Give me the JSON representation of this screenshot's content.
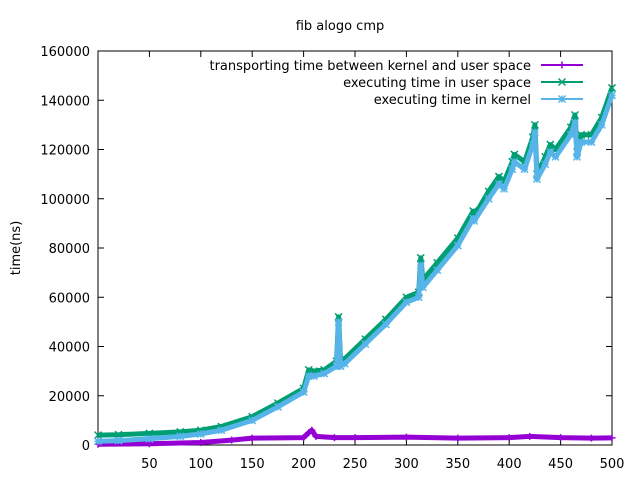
{
  "chart_data": {
    "type": "line",
    "title": "fib alogo cmp",
    "xlabel": "",
    "ylabel": "time(ns)",
    "xlim": [
      0,
      500
    ],
    "ylim": [
      0,
      160000
    ],
    "xticks": [
      50,
      100,
      150,
      200,
      250,
      300,
      350,
      400,
      450,
      500
    ],
    "yticks": [
      0,
      20000,
      40000,
      60000,
      80000,
      100000,
      120000,
      140000,
      160000
    ],
    "grid": false,
    "legend_position": "top-right",
    "series": [
      {
        "name": "transporting time between kernel and user space",
        "color": "#9400d3",
        "marker": "plus",
        "x": [
          0,
          50,
          100,
          130,
          150,
          200,
          205,
          208,
          212,
          230,
          250,
          300,
          350,
          400,
          420,
          450,
          480,
          500
        ],
        "values": [
          300,
          500,
          1000,
          2000,
          2800,
          3000,
          5000,
          6000,
          3500,
          3000,
          3000,
          3200,
          2800,
          3000,
          3500,
          3000,
          2800,
          2900
        ]
      },
      {
        "name": "executing time in user space",
        "color": "#009e73",
        "marker": "x",
        "x": [
          0,
          20,
          50,
          80,
          100,
          120,
          150,
          175,
          200,
          205,
          210,
          220,
          232,
          234,
          236,
          240,
          260,
          280,
          300,
          312,
          314,
          316,
          330,
          350,
          365,
          366,
          380,
          390,
          395,
          403,
          405,
          415,
          423,
          425,
          427,
          435,
          440,
          445,
          460,
          464,
          466,
          470,
          480,
          490,
          500
        ],
        "values": [
          4000,
          4200,
          4700,
          5300,
          6000,
          7500,
          11500,
          17000,
          23000,
          30500,
          30000,
          30500,
          34000,
          52000,
          34000,
          35000,
          43000,
          51000,
          60000,
          62000,
          76000,
          67000,
          74000,
          84000,
          95000,
          93000,
          103000,
          109000,
          107000,
          115000,
          118000,
          115000,
          125000,
          130000,
          110000,
          117000,
          122000,
          120000,
          129000,
          134000,
          119000,
          126000,
          126000,
          133000,
          145000
        ]
      },
      {
        "name": "executing time in kernel",
        "color": "#56b4e9",
        "marker": "star",
        "x": [
          0,
          20,
          50,
          80,
          100,
          120,
          150,
          175,
          200,
          205,
          210,
          220,
          232,
          234,
          236,
          240,
          260,
          280,
          300,
          312,
          314,
          316,
          330,
          350,
          365,
          366,
          380,
          390,
          395,
          403,
          405,
          415,
          423,
          425,
          427,
          435,
          440,
          445,
          460,
          464,
          466,
          470,
          480,
          490,
          500
        ],
        "values": [
          1500,
          1800,
          2500,
          3500,
          4500,
          6000,
          10000,
          15500,
          21500,
          28000,
          28000,
          29000,
          32000,
          50000,
          32000,
          33000,
          41000,
          49000,
          58000,
          60000,
          73000,
          64000,
          71000,
          81000,
          92000,
          91000,
          100000,
          106000,
          104000,
          112000,
          115000,
          112000,
          122000,
          127000,
          108000,
          114000,
          119000,
          117000,
          126000,
          131000,
          117000,
          123000,
          123000,
          130000,
          142000
        ]
      }
    ]
  }
}
